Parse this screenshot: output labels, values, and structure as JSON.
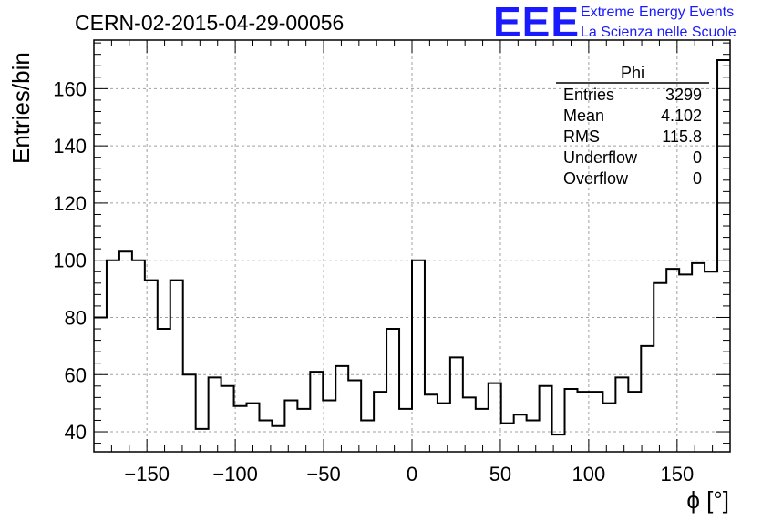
{
  "header": {
    "title": "CERN-02-2015-04-29-00056"
  },
  "logo": {
    "mark": "EEE",
    "line1": "Extreme Energy Events",
    "line2": "La Scienza nelle Scuole",
    "color": "#1a1aff"
  },
  "stats": {
    "name": "Phi",
    "rows": [
      {
        "label": "Entries",
        "value": "3299"
      },
      {
        "label": "Mean",
        "value": "4.102"
      },
      {
        "label": "RMS",
        "value": "115.8"
      },
      {
        "label": "Underflow",
        "value": "0"
      },
      {
        "label": "Overflow",
        "value": "0"
      }
    ]
  },
  "chart_data": {
    "type": "bar",
    "histogram": true,
    "title": "CERN-02-2015-04-29-00056",
    "xlabel": "ϕ [°]",
    "ylabel": "Entries/bin",
    "xlim": [
      -180,
      180
    ],
    "ylim": [
      33,
      177
    ],
    "bin_width": 7.2,
    "bin_start": -180,
    "x_ticks": [
      -150,
      -100,
      -50,
      0,
      50,
      100,
      150
    ],
    "x_tick_labels": [
      "−150",
      "−100",
      "−50",
      "0",
      "50",
      "100",
      "150"
    ],
    "y_ticks": [
      40,
      60,
      80,
      100,
      120,
      140,
      160
    ],
    "y_tick_labels": [
      "40",
      "60",
      "80",
      "100",
      "120",
      "140",
      "160"
    ],
    "grid": true,
    "legend": "top-right",
    "series": [
      {
        "values": [
          80,
          100,
          103,
          100,
          93,
          76,
          93,
          60,
          41,
          59,
          56,
          49,
          50,
          44,
          42,
          51,
          48,
          61,
          51,
          63,
          58,
          44,
          54,
          76,
          48,
          100,
          53,
          50,
          66,
          52,
          48,
          57,
          43,
          46,
          44,
          56,
          39,
          55,
          54,
          54,
          50,
          59,
          54,
          70,
          92,
          97,
          95,
          99,
          96,
          170
        ]
      }
    ]
  }
}
